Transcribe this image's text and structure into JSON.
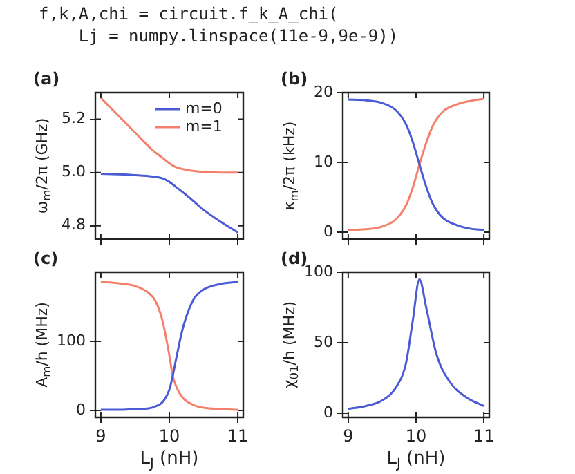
{
  "chart_data": [
    {
      "type": "other",
      "annotations": [
        "f,k,A,chi = circuit.f_k_A_chi(",
        "    Lj = numpy.linspace(11e-9,9e-9))"
      ]
    },
    {
      "type": "line",
      "title": "(a)",
      "ylabel": "ω$_{m}$/2π (GHz)",
      "xlim": [
        8.92,
        11.08
      ],
      "xticks": [
        9,
        10,
        11
      ],
      "ylim": [
        4.75,
        5.3
      ],
      "yticks": [
        {
          "value": 4.8,
          "label": "4.8"
        },
        {
          "value": 5,
          "label": "5.0"
        },
        {
          "value": 5.2,
          "label": "5.2"
        }
      ],
      "tick_labels": "y",
      "legend": "top right",
      "x": [
        9,
        9.25,
        9.5,
        9.75,
        9.9,
        10,
        10.1,
        10.25,
        10.5,
        10.75,
        11
      ],
      "series": [
        {
          "name": "m=0",
          "color": "#4a5bd4",
          "values": [
            4.995,
            4.993,
            4.99,
            4.985,
            4.978,
            4.965,
            4.945,
            4.915,
            4.86,
            4.815,
            4.775
          ]
        },
        {
          "name": "m=1",
          "color": "#f4806c",
          "values": [
            5.28,
            5.215,
            5.15,
            5.085,
            5.055,
            5.035,
            5.02,
            5.01,
            5.002,
            5.0,
            5.0
          ]
        }
      ]
    },
    {
      "type": "line",
      "title": "(b)",
      "ylabel": "κ$_{m}$/2π (kHz)",
      "xlim": [
        8.92,
        11.08
      ],
      "xticks": [
        9,
        10,
        11
      ],
      "ylim": [
        -1,
        20
      ],
      "yticks": [
        0,
        10,
        20
      ],
      "tick_labels": "y",
      "x": [
        9,
        9.25,
        9.5,
        9.7,
        9.85,
        9.95,
        10.05,
        10.15,
        10.25,
        10.4,
        10.6,
        10.8,
        11
      ],
      "series": [
        {
          "color": "#4a5bd4",
          "values": [
            19,
            18.9,
            18.5,
            17.5,
            15.5,
            13,
            9.7,
            6.5,
            4,
            2,
            1,
            0.5,
            0.3
          ]
        },
        {
          "color": "#f4806c",
          "values": [
            0.3,
            0.4,
            0.8,
            1.8,
            3.8,
            6.3,
            9.7,
            12.8,
            15.3,
            17.3,
            18.3,
            18.8,
            19.1
          ]
        }
      ]
    },
    {
      "type": "line",
      "title": "(c)",
      "xlabel": "L$_{J}$ (nH)",
      "ylabel": "A$_{m}$/h (MHz)",
      "xlim": [
        8.92,
        11.08
      ],
      "xticks": [
        9,
        10,
        11
      ],
      "ylim": [
        -10,
        200
      ],
      "yticks": [
        0,
        100
      ],
      "x": [
        9,
        9.25,
        9.5,
        9.7,
        9.8,
        9.9,
        10,
        10.05,
        10.1,
        10.2,
        10.35,
        10.5,
        10.75,
        11
      ],
      "series": [
        {
          "color": "#4a5bd4",
          "values": [
            1,
            1,
            2,
            3,
            6,
            12,
            30,
            50,
            75,
            120,
            160,
            175,
            183,
            186
          ]
        },
        {
          "color": "#f4806c",
          "values": [
            186,
            184,
            180,
            170,
            158,
            130,
            80,
            50,
            35,
            18,
            8,
            4,
            2,
            1
          ]
        }
      ]
    },
    {
      "type": "line",
      "title": "(d)",
      "xlabel": "L$_{J}$ (nH)",
      "ylabel": "χ$_{01}$/h (MHz)",
      "xlim": [
        8.92,
        11.08
      ],
      "xticks": [
        9,
        10,
        11
      ],
      "ylim": [
        -3,
        100
      ],
      "yticks": [
        0,
        50,
        100
      ],
      "x": [
        9,
        9.25,
        9.5,
        9.7,
        9.85,
        9.95,
        10.05,
        10.15,
        10.3,
        10.5,
        10.75,
        11
      ],
      "series": [
        {
          "color": "#4a5bd4",
          "values": [
            3,
            5,
            9,
            18,
            35,
            65,
            95,
            75,
            42,
            22,
            11,
            5
          ]
        }
      ]
    }
  ]
}
